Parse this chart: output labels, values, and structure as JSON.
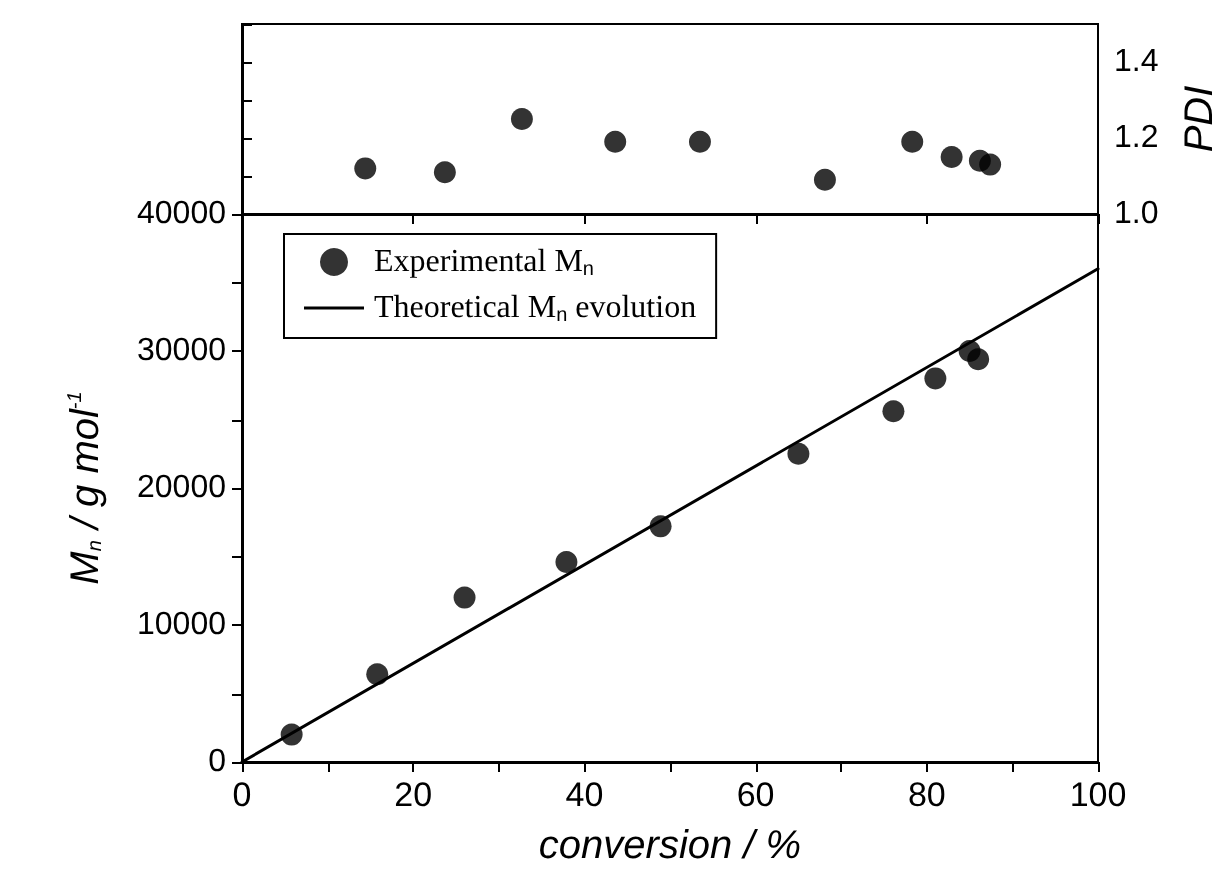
{
  "chart_data": [
    {
      "type": "scatter",
      "ylabel": "PDI",
      "tick_labels": "y",
      "marker": "circle",
      "xlim": [
        0,
        100
      ],
      "xticks": [
        {
          "value": 0,
          "label": null
        },
        {
          "value": 20,
          "label": null
        },
        {
          "value": 40,
          "label": null
        },
        {
          "value": 60,
          "label": null
        },
        {
          "value": 80,
          "label": null
        },
        {
          "value": 100,
          "label": null
        }
      ],
      "ylim": [
        1.0,
        1.5
      ],
      "yticks": [
        {
          "value": 1.0,
          "label": "1.0"
        },
        {
          "value": 1.1,
          "label": null
        },
        {
          "value": 1.2,
          "label": "1.2"
        },
        {
          "value": 1.3,
          "label": null
        },
        {
          "value": 1.4,
          "label": "1.4"
        },
        {
          "value": 1.5,
          "label": null
        }
      ],
      "series": [
        {
          "color": "#000000",
          "x": [
            14.4,
            23.7,
            32.7,
            43.6,
            53.5,
            68.1,
            78.3,
            82.9,
            86.2,
            87.4
          ],
          "values": [
            1.12,
            1.11,
            1.25,
            1.19,
            1.19,
            1.09,
            1.19,
            1.15,
            1.14,
            1.13
          ]
        }
      ]
    },
    {
      "type": "scatter",
      "xlabel": "conversion / %",
      "ylabel": "M$_{n}$ / g mol$^{-1}$",
      "legend": "top left",
      "marker": "circle",
      "xlim": [
        0,
        100
      ],
      "xticks": [
        0,
        {
          "value": 10,
          "label": null
        },
        20,
        {
          "value": 30,
          "label": null
        },
        40,
        {
          "value": 50,
          "label": null
        },
        60,
        {
          "value": 70,
          "label": null
        },
        80,
        {
          "value": 90,
          "label": null
        },
        100
      ],
      "ylim": [
        0,
        40000
      ],
      "yticks": [
        0,
        {
          "value": 5000,
          "label": null
        },
        10000,
        {
          "value": 15000,
          "label": null
        },
        20000,
        {
          "value": 25000,
          "label": null
        },
        30000,
        {
          "value": 35000,
          "label": null
        },
        40000
      ],
      "series": [
        {
          "name": "Experimental M$_{n}$",
          "color": "#000000",
          "x": [
            5.8,
            15.8,
            26.0,
            37.9,
            48.9,
            65.0,
            76.1,
            81.0,
            85.0,
            86.0
          ],
          "values": [
            2000,
            6400,
            12000,
            14600,
            17200,
            22500,
            25600,
            28000,
            30000,
            29400
          ]
        },
        {
          "name": "Theoretical M$_{n}$ evolution",
          "type": "line",
          "marker": "none",
          "line_style": "solid",
          "color": "#000000",
          "x": [
            0,
            100
          ],
          "values": [
            0,
            36000
          ]
        }
      ]
    }
  ]
}
